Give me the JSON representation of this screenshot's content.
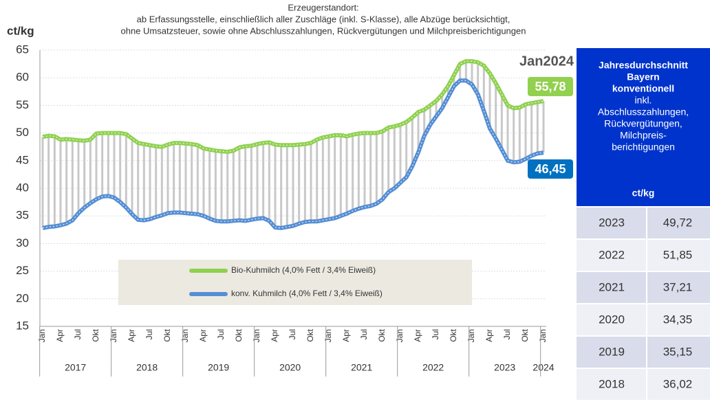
{
  "chart_data": {
    "type": "line",
    "subtitle_lines": [
      "Erzeugerstandort:",
      "ab Erfassungsstelle,  einschließlich aller Zuschläge  (inkl. S-Klasse), alle Abzüge berücksichtigt,",
      "ohne Umsatzsteuer,  sowie ohne Abschlusszahlungen,  Rückvergütungen  und Milchpreisberichtigungen"
    ],
    "y_label": "ct/kg",
    "annotation": "Jan2024",
    "categories": [
      "Jan",
      null,
      null,
      "Apr",
      null,
      null,
      "Jul",
      null,
      null,
      "Okt",
      null,
      null,
      "Jan",
      null,
      null,
      "Apr",
      null,
      null,
      "Jul",
      null,
      null,
      "Okt",
      null,
      null,
      "Jan",
      null,
      null,
      "Apr",
      null,
      null,
      "Jul",
      null,
      null,
      "Okt",
      null,
      null,
      "Jan",
      null,
      null,
      "Apr",
      null,
      null,
      "Jul",
      null,
      null,
      "Okt",
      null,
      null,
      "Jan",
      null,
      null,
      "Apr",
      null,
      null,
      "Jul",
      null,
      null,
      "Okt",
      null,
      null,
      "Jan",
      null,
      null,
      "Apr",
      null,
      null,
      "Jul",
      null,
      null,
      "Okt",
      null,
      null,
      "Jan",
      null,
      null,
      "Apr",
      null,
      null,
      "Jul",
      null,
      null,
      "Okt",
      null,
      null,
      "Jan"
    ],
    "year_labels": [
      "2017",
      "2018",
      "2019",
      "2020",
      "2021",
      "2022",
      "2023",
      "2024"
    ],
    "series": [
      {
        "name": "Bio-Kuhmilch (4,0% Fett / 3,4% Eiweiß)",
        "color": "#8fd14f",
        "values": [
          49.3,
          49.5,
          49.4,
          48.8,
          48.9,
          48.8,
          48.7,
          48.6,
          48.8,
          49.9,
          50,
          50,
          50,
          50,
          49.8,
          49,
          48.2,
          48,
          47.8,
          47.6,
          47.5,
          47.9,
          48.2,
          48.2,
          48.1,
          48,
          47.8,
          47.2,
          47,
          46.8,
          46.7,
          46.6,
          46.8,
          47.4,
          47.6,
          47.7,
          48,
          48.2,
          48.3,
          47.9,
          47.8,
          47.8,
          47.8,
          47.9,
          48,
          48.2,
          48.8,
          49.2,
          49.4,
          49.6,
          49.6,
          49.4,
          49.7,
          49.9,
          50,
          50,
          50,
          50.3,
          51,
          51.2,
          51.5,
          52,
          52.8,
          53.8,
          54.2,
          55,
          55.8,
          57,
          58.5,
          60.5,
          62.5,
          63,
          63,
          62.8,
          62.2,
          60.8,
          59,
          57,
          55,
          54.5,
          54.6,
          55.2,
          55.4,
          55.6,
          55.78
        ],
        "value_labels": [
          null,
          null,
          null,
          null,
          null,
          null,
          null,
          null,
          null,
          null,
          null,
          null,
          null,
          null,
          null,
          null,
          null,
          null,
          null,
          null,
          null,
          null,
          null,
          null,
          null,
          null,
          null,
          null,
          null,
          null,
          null,
          null,
          null,
          null,
          null,
          null,
          null,
          null,
          null,
          null,
          null,
          null,
          null,
          null,
          null,
          null,
          null,
          null,
          null,
          null,
          null,
          null,
          null,
          null,
          null,
          null,
          null,
          null,
          null,
          null,
          null,
          null,
          null,
          null,
          null,
          null,
          null,
          null,
          null,
          null,
          null,
          null,
          null,
          null,
          null,
          null,
          null,
          null,
          null,
          null,
          null,
          null,
          null,
          null,
          "55,78"
        ]
      },
      {
        "name": "konv. Kuhmilch (4,0% Fett / 3,4% Eiweiß)",
        "color": "#558ed5",
        "values": [
          32.8,
          33,
          33.1,
          33.3,
          33.6,
          34.2,
          35.5,
          36.5,
          37.3,
          38,
          38.5,
          38.6,
          38.3,
          37.5,
          36.5,
          35.3,
          34.3,
          34.2,
          34.4,
          34.8,
          35.1,
          35.5,
          35.6,
          35.6,
          35.5,
          35.4,
          35.3,
          35,
          34.5,
          34.1,
          34,
          34,
          34.1,
          34.2,
          34.1,
          34.3,
          34.5,
          34.6,
          34.1,
          32.9,
          32.8,
          33,
          33.2,
          33.6,
          33.9,
          34,
          34,
          34.2,
          34.4,
          34.6,
          35,
          35.4,
          35.9,
          36.3,
          36.6,
          36.8,
          37.2,
          38,
          39.3,
          40,
          41,
          42,
          44,
          46.5,
          49.5,
          51.5,
          53,
          54.5,
          56.5,
          58.5,
          59.5,
          59.5,
          58.8,
          57,
          54,
          50.8,
          49,
          47,
          45,
          44.7,
          44.8,
          45.3,
          45.9,
          46.3,
          46.45
        ],
        "value_labels": [
          null,
          null,
          null,
          null,
          null,
          null,
          null,
          null,
          null,
          null,
          null,
          null,
          null,
          null,
          null,
          null,
          null,
          null,
          null,
          null,
          null,
          null,
          null,
          null,
          null,
          null,
          null,
          null,
          null,
          null,
          null,
          null,
          null,
          null,
          null,
          null,
          null,
          null,
          null,
          null,
          null,
          null,
          null,
          null,
          null,
          null,
          null,
          null,
          null,
          null,
          null,
          null,
          null,
          null,
          null,
          null,
          null,
          null,
          null,
          null,
          null,
          null,
          null,
          null,
          null,
          null,
          null,
          null,
          null,
          null,
          null,
          null,
          null,
          null,
          null,
          null,
          null,
          null,
          null,
          null,
          null,
          null,
          null,
          null,
          "46,45"
        ]
      }
    ],
    "ylim": [
      15,
      65
    ],
    "yticks": [
      15,
      20,
      25,
      30,
      35,
      40,
      45,
      50,
      55,
      60,
      65
    ],
    "grid": true
  },
  "side_table": {
    "header_bold": [
      "Jahresdurchschnitt",
      "Bayern",
      "konventionell"
    ],
    "header_normal": [
      "inkl.",
      "Abschlusszahlungen,",
      "Rückvergütungen,",
      "Milchpreis-",
      "berichtigungen"
    ],
    "unit": "ct/kg",
    "rows": [
      [
        "2023",
        "49,72"
      ],
      [
        "2022",
        "51,85"
      ],
      [
        "2021",
        "37,21"
      ],
      [
        "2020",
        "34,35"
      ],
      [
        "2019",
        "35,15"
      ],
      [
        "2018",
        "36,02"
      ]
    ]
  }
}
